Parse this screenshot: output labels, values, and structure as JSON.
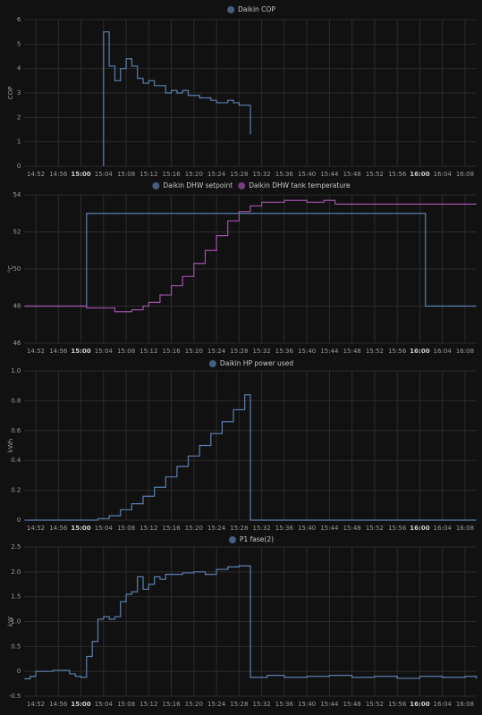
{
  "chart_data": [
    {
      "type": "line",
      "step": true,
      "ylabel": "COP",
      "ylim": [
        0,
        6
      ],
      "yticks": [
        0,
        1,
        2,
        3,
        4,
        5,
        6
      ],
      "xlim": [
        "14:50",
        "16:10"
      ],
      "xticks": [
        "14:52",
        "14:56",
        "15:00",
        "15:04",
        "15:08",
        "15:12",
        "15:16",
        "15:20",
        "15:24",
        "15:28",
        "15:32",
        "15:36",
        "15:40",
        "15:44",
        "15:48",
        "15:52",
        "15:56",
        "16:00",
        "16:04",
        "16:08"
      ],
      "grid": true,
      "series": [
        {
          "name": "Daikin COP",
          "color": "#5b7fae",
          "x": [
            "15:04",
            "15:04",
            "15:05",
            "15:06",
            "15:07",
            "15:08",
            "15:09",
            "15:10",
            "15:11",
            "15:12",
            "15:13",
            "15:14",
            "15:15",
            "15:16",
            "15:17",
            "15:18",
            "15:19",
            "15:20",
            "15:21",
            "15:22",
            "15:23",
            "15:24",
            "15:25",
            "15:26",
            "15:27",
            "15:28",
            "15:29",
            "15:30"
          ],
          "values": [
            0,
            5.5,
            4.1,
            3.5,
            4.0,
            4.4,
            4.1,
            3.6,
            3.4,
            3.5,
            3.3,
            3.3,
            3.0,
            3.1,
            3.0,
            3.1,
            2.9,
            2.9,
            2.8,
            2.8,
            2.7,
            2.6,
            2.6,
            2.7,
            2.6,
            2.5,
            2.5,
            1.3
          ]
        }
      ]
    },
    {
      "type": "line",
      "step": true,
      "ylabel": "°C",
      "ylim": [
        46,
        54
      ],
      "yticks": [
        46,
        48,
        50,
        52,
        54
      ],
      "xlim": [
        "14:50",
        "16:10"
      ],
      "xticks": [
        "14:52",
        "14:56",
        "15:00",
        "15:04",
        "15:08",
        "15:12",
        "15:16",
        "15:20",
        "15:24",
        "15:28",
        "15:32",
        "15:36",
        "15:40",
        "15:44",
        "15:48",
        "15:52",
        "15:56",
        "16:00",
        "16:04",
        "16:08"
      ],
      "grid": true,
      "series": [
        {
          "name": "Daikin DHW setpoint",
          "color": "#5b7fae",
          "x": [
            "14:50",
            "15:01",
            "15:01",
            "16:01",
            "16:01",
            "16:10"
          ],
          "values": [
            48,
            48,
            53,
            53,
            48,
            48
          ]
        },
        {
          "name": "Daikin DHW tank temperature",
          "color": "#a052a8",
          "x": [
            "14:50",
            "15:00",
            "15:01",
            "15:04",
            "15:06",
            "15:09",
            "15:11",
            "15:12",
            "15:14",
            "15:16",
            "15:18",
            "15:20",
            "15:22",
            "15:24",
            "15:26",
            "15:28",
            "15:30",
            "15:32",
            "15:36",
            "15:40",
            "15:43",
            "15:45",
            "16:10"
          ],
          "values": [
            48,
            48,
            47.9,
            47.9,
            47.7,
            47.8,
            48.0,
            48.2,
            48.6,
            49.1,
            49.6,
            50.3,
            51.0,
            51.8,
            52.6,
            53.1,
            53.4,
            53.6,
            53.7,
            53.6,
            53.7,
            53.5,
            53.5
          ]
        }
      ]
    },
    {
      "type": "line",
      "step": true,
      "ylabel": "kWh",
      "ylim": [
        0,
        1
      ],
      "yticks": [
        0,
        0.2,
        0.4,
        0.6,
        0.8,
        {
          "value": 1,
          "label": "1.0"
        }
      ],
      "xlim": [
        "14:50",
        "16:10"
      ],
      "xticks": [
        "14:52",
        "14:56",
        "15:00",
        "15:04",
        "15:08",
        "15:12",
        "15:16",
        "15:20",
        "15:24",
        "15:28",
        "15:32",
        "15:36",
        "15:40",
        "15:44",
        "15:48",
        "15:52",
        "15:56",
        "16:00",
        "16:04",
        "16:08"
      ],
      "grid": true,
      "series": [
        {
          "name": "Daikin HP power used",
          "color": "#5b7fae",
          "x": [
            "14:50",
            "15:01",
            "15:03",
            "15:05",
            "15:07",
            "15:09",
            "15:11",
            "15:13",
            "15:15",
            "15:17",
            "15:19",
            "15:21",
            "15:23",
            "15:25",
            "15:27",
            "15:29",
            "15:30",
            "16:10"
          ],
          "values": [
            0,
            0,
            0.01,
            0.03,
            0.07,
            0.11,
            0.16,
            0.22,
            0.29,
            0.36,
            0.43,
            0.5,
            0.58,
            0.66,
            0.74,
            0.84,
            0,
            0
          ]
        }
      ]
    },
    {
      "type": "line",
      "step": true,
      "ylabel": "kW",
      "ylim": [
        -0.5,
        2.5
      ],
      "yticks": [
        -0.5,
        0,
        0.5,
        {
          "value": 1,
          "label": "1.0"
        },
        1.5,
        {
          "value": 2,
          "label": "2.0"
        },
        2.5
      ],
      "xlim": [
        "14:50",
        "16:10"
      ],
      "xticks": [
        "14:52",
        "14:56",
        "15:00",
        "15:04",
        "15:08",
        "15:12",
        "15:16",
        "15:20",
        "15:24",
        "15:28",
        "15:32",
        "15:36",
        "15:40",
        "15:44",
        "15:48",
        "15:52",
        "15:56",
        "16:00",
        "16:04",
        "16:08"
      ],
      "grid": true,
      "series": [
        {
          "name": "P1 fase(2)",
          "color": "#5b7fae",
          "x": [
            "14:50",
            "14:51",
            "14:52",
            "14:55",
            "14:58",
            "14:59",
            "15:00",
            "15:01",
            "15:02",
            "15:03",
            "15:04",
            "15:05",
            "15:06",
            "15:07",
            "15:08",
            "15:09",
            "15:10",
            "15:11",
            "15:12",
            "15:13",
            "15:14",
            "15:15",
            "15:16",
            "15:18",
            "15:20",
            "15:22",
            "15:24",
            "15:26",
            "15:28",
            "15:30",
            "15:33",
            "15:36",
            "15:40",
            "15:44",
            "15:48",
            "15:52",
            "15:56",
            "16:00",
            "16:04",
            "16:08",
            "16:10"
          ],
          "values": [
            -0.15,
            -0.1,
            0,
            0.02,
            -0.05,
            -0.1,
            -0.12,
            0.3,
            0.6,
            1.05,
            1.1,
            1.05,
            1.1,
            1.4,
            1.55,
            1.6,
            1.9,
            1.65,
            1.75,
            1.9,
            1.85,
            1.95,
            1.95,
            1.98,
            2.0,
            1.95,
            2.05,
            2.1,
            2.12,
            -0.12,
            -0.08,
            -0.12,
            -0.1,
            -0.08,
            -0.12,
            -0.1,
            -0.14,
            -0.1,
            -0.12,
            -0.1,
            -0.15
          ]
        }
      ]
    }
  ]
}
